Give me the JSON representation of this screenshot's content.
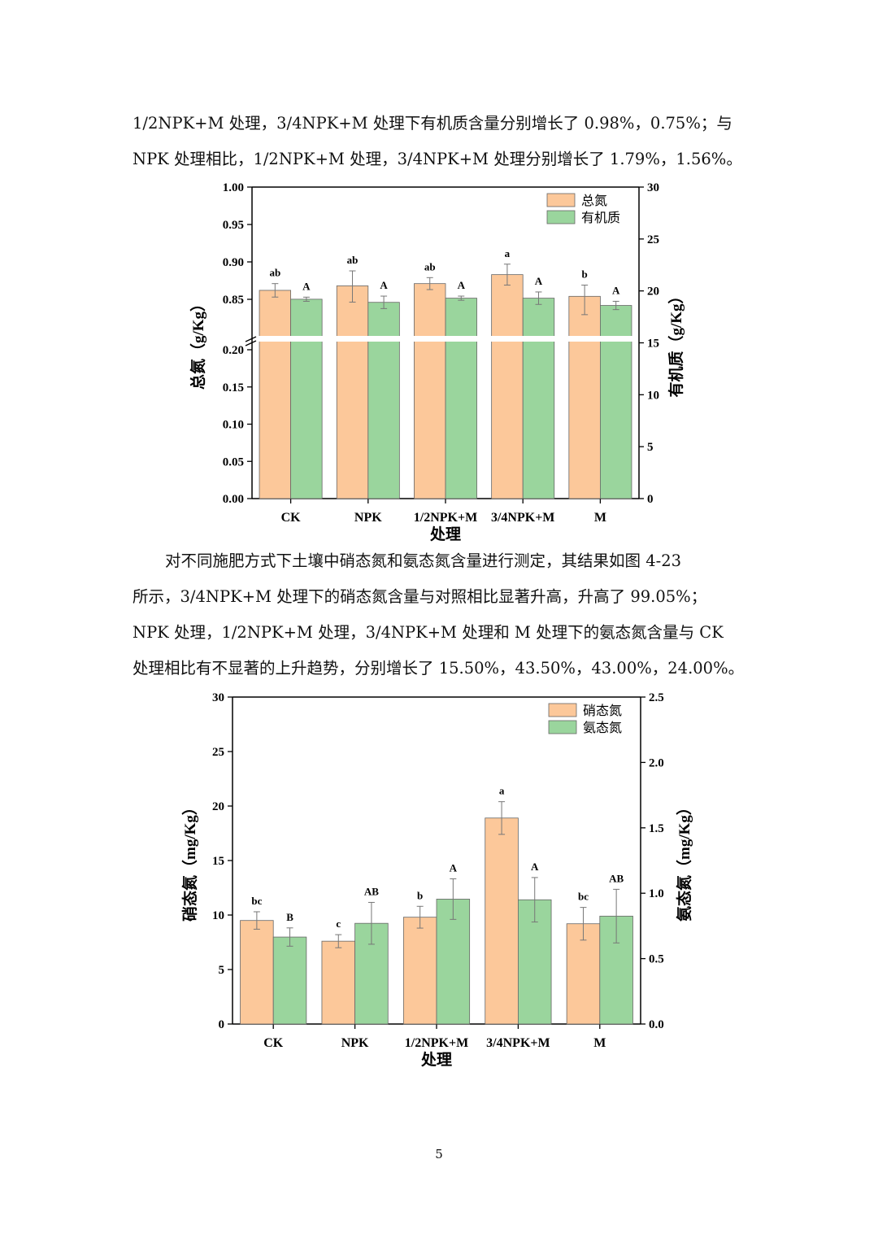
{
  "paragraphs": {
    "top": [
      "1/2NPK+M 处理，3/4NPK+M 处理下有机质含量分别增长了 0.98%，0.75%；与",
      "NPK 处理相比，1/2NPK+M 处理，3/4NPK+M 处理分别增长了 1.79%，1.56%。"
    ],
    "middle": [
      "对不同施肥方式下土壤中硝态氮和氨态氮含量进行测定，其结果如图 4-23",
      "所示，3/4NPK+M 处理下的硝态氮含量与对照相比显著升高，升高了 99.05%；",
      "NPK 处理，1/2NPK+M 处理，3/4NPK+M 处理和 M 处理下的氨态氮含量与 CK",
      "处理相比有不显著的上升趋势，分别增长了 15.50%，43.50%，43.00%，24.00%。"
    ]
  },
  "colors": {
    "series1": "#fcc89a",
    "series2": "#9ad59d",
    "error_bar": "#777777"
  },
  "page_number": "5",
  "chart_data": [
    {
      "type": "bar",
      "categories": [
        "CK",
        "NPK",
        "1/2NPK+M",
        "3/4NPK+M",
        "M"
      ],
      "xlabel": "处理",
      "ylabel_left": "总氮（g/Kg）",
      "ylabel_right": "有机质（g/Kg）",
      "left_axis": {
        "break": true,
        "lower_range": [
          0,
          0.2
        ],
        "upper_range": [
          0.8,
          1.0
        ],
        "ticks": [
          "0.00",
          "0.05",
          "0.10",
          "0.15",
          "0.20",
          "0.85",
          "0.90",
          "0.95",
          "1.00"
        ]
      },
      "right_axis": {
        "range": [
          0,
          30
        ],
        "ticks": [
          "0",
          "5",
          "10",
          "15",
          "20",
          "25",
          "30"
        ]
      },
      "legend_position": "top-right",
      "series": [
        {
          "name": "总氮",
          "axis": "left",
          "values": [
            0.862,
            0.868,
            0.871,
            0.883,
            0.854
          ],
          "errors": [
            0.009,
            0.02,
            0.008,
            0.014,
            0.015
          ],
          "labels": [
            "ab",
            "ab",
            "ab",
            "a",
            "b"
          ]
        },
        {
          "name": "有机质",
          "axis": "right",
          "values": [
            19.2,
            18.9,
            19.3,
            19.3,
            18.6
          ],
          "errors": [
            0.2,
            0.6,
            0.2,
            0.6,
            0.4
          ],
          "labels": [
            "A",
            "A",
            "A",
            "A",
            "A"
          ]
        }
      ]
    },
    {
      "type": "bar",
      "categories": [
        "CK",
        "NPK",
        "1/2NPK+M",
        "3/4NPK+M",
        "M"
      ],
      "xlabel": "处理",
      "ylabel_left": "硝态氮（mg/Kg）",
      "ylabel_right": "氨态氮（mg/Kg）",
      "left_axis": {
        "range": [
          0,
          30
        ],
        "ticks": [
          "0",
          "5",
          "10",
          "15",
          "20",
          "25",
          "30"
        ]
      },
      "right_axis": {
        "range": [
          0,
          2.5
        ],
        "ticks": [
          "0.0",
          "0.5",
          "1.0",
          "1.5",
          "2.0",
          "2.5"
        ]
      },
      "legend_position": "top-right",
      "series": [
        {
          "name": "硝态氮",
          "axis": "left",
          "values": [
            9.5,
            7.6,
            9.8,
            18.9,
            9.2
          ],
          "errors": [
            0.8,
            0.6,
            1.0,
            1.5,
            1.5
          ],
          "labels": [
            "bc",
            "c",
            "b",
            "a",
            "bc"
          ]
        },
        {
          "name": "氨态氮",
          "axis": "right",
          "values": [
            0.665,
            0.77,
            0.955,
            0.95,
            0.825
          ],
          "errors": [
            0.07,
            0.16,
            0.155,
            0.17,
            0.205
          ],
          "labels": [
            "B",
            "AB",
            "A",
            "A",
            "AB"
          ]
        }
      ]
    }
  ]
}
